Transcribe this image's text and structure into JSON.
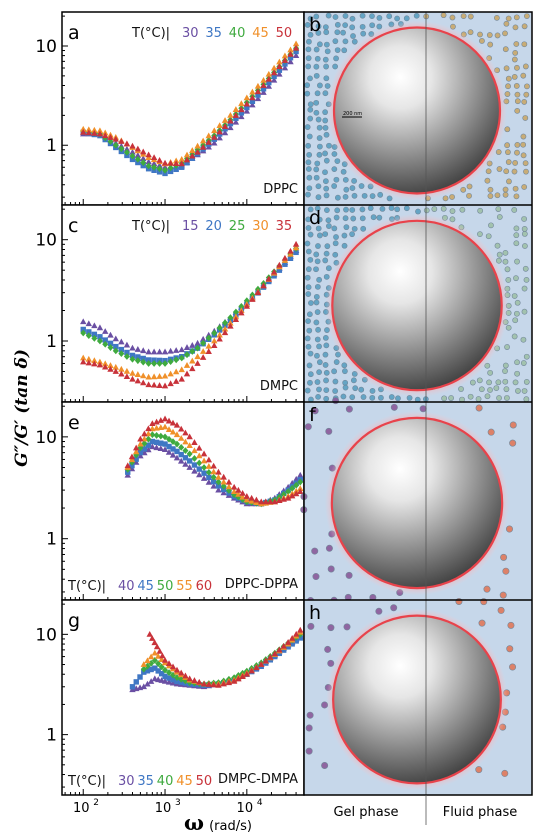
{
  "figure": {
    "ylabel": "G″/G′ (tan δ)",
    "xlabel_symbol": "ω",
    "xlabel_unit": "(rad/s)",
    "phase_labels": [
      "Gel phase",
      "Fluid phase"
    ],
    "x_ticks": [
      {
        "value": 100,
        "base": "10",
        "exp": "2"
      },
      {
        "value": 1000,
        "base": "10",
        "exp": "3"
      },
      {
        "value": 10000,
        "base": "10",
        "exp": "4"
      }
    ],
    "y_ticks": [
      {
        "value": 1,
        "label": "1"
      },
      {
        "value": 10,
        "label": "10"
      }
    ],
    "scale_bar_label": "200 nm"
  },
  "chart_data": [
    {
      "type": "scatter",
      "panel": "a",
      "sample": "DPPC",
      "legend_title": "T(°C)|",
      "legend_position": "top-right",
      "sample_label_position": "bottom-right",
      "x_scale": "log",
      "y_scale": "log",
      "xlim": [
        55,
        50000
      ],
      "ylim": [
        0.25,
        22
      ],
      "series": [
        {
          "name": "30",
          "color": "#6a4fa3",
          "x": [
            100,
            160,
            250,
            400,
            630,
            1000,
            1600,
            2500,
            4000,
            6300,
            10000,
            16000,
            25000,
            40000
          ],
          "y": [
            1.3,
            1.3,
            1.05,
            0.85,
            0.68,
            0.6,
            0.62,
            0.8,
            1.05,
            1.5,
            2.2,
            3.4,
            5.2,
            8.0
          ]
        },
        {
          "name": "35",
          "color": "#3f77c4",
          "x": [
            100,
            160,
            250,
            400,
            630,
            1000,
            1600,
            2500,
            4000,
            6300,
            10000,
            16000,
            25000,
            40000
          ],
          "y": [
            1.35,
            1.25,
            0.95,
            0.72,
            0.58,
            0.52,
            0.6,
            0.82,
            1.15,
            1.65,
            2.4,
            3.7,
            5.7,
            8.8
          ]
        },
        {
          "name": "40",
          "color": "#3faa3f",
          "x": [
            100,
            160,
            250,
            400,
            630,
            1000,
            1600,
            2500,
            4000,
            6300,
            10000,
            16000,
            25000,
            40000
          ],
          "y": [
            1.4,
            1.3,
            1.0,
            0.78,
            0.62,
            0.56,
            0.66,
            0.9,
            1.25,
            1.8,
            2.7,
            4.1,
            6.2,
            9.5
          ]
        },
        {
          "name": "45",
          "color": "#f0902a",
          "x": [
            100,
            160,
            250,
            400,
            630,
            1000,
            1600,
            2500,
            4000,
            6300,
            10000,
            16000,
            25000,
            40000
          ],
          "y": [
            1.45,
            1.4,
            1.2,
            0.95,
            0.75,
            0.65,
            0.72,
            0.98,
            1.4,
            2.0,
            3.0,
            4.5,
            6.9,
            10.5
          ]
        },
        {
          "name": "50",
          "color": "#c8323a",
          "x": [
            100,
            160,
            250,
            400,
            630,
            1000,
            1600,
            2500,
            4000,
            6300,
            10000,
            16000,
            25000,
            40000
          ],
          "y": [
            1.35,
            1.3,
            1.15,
            0.98,
            0.8,
            0.66,
            0.65,
            0.85,
            1.2,
            1.75,
            2.6,
            4.0,
            6.2,
            9.5
          ]
        }
      ]
    },
    {
      "type": "scatter",
      "panel": "c",
      "sample": "DMPC",
      "legend_title": "T(°C)|",
      "legend_position": "top-right",
      "sample_label_position": "bottom-right",
      "x_scale": "log",
      "y_scale": "log",
      "xlim": [
        55,
        50000
      ],
      "ylim": [
        0.25,
        22
      ],
      "series": [
        {
          "name": "15",
          "color": "#6a4fa3",
          "x": [
            100,
            160,
            250,
            400,
            630,
            1000,
            1600,
            2500,
            4000,
            6300,
            10000,
            16000,
            25000,
            40000
          ],
          "y": [
            1.55,
            1.35,
            1.05,
            0.85,
            0.78,
            0.78,
            0.82,
            0.95,
            1.25,
            1.7,
            2.4,
            3.5,
            5.2,
            7.8
          ]
        },
        {
          "name": "20",
          "color": "#3f77c4",
          "x": [
            100,
            160,
            250,
            400,
            630,
            1000,
            1600,
            2500,
            4000,
            6300,
            10000,
            16000,
            25000,
            40000
          ],
          "y": [
            1.3,
            1.1,
            0.88,
            0.72,
            0.65,
            0.64,
            0.7,
            0.85,
            1.15,
            1.6,
            2.3,
            3.4,
            5.0,
            7.5
          ]
        },
        {
          "name": "25",
          "color": "#3faa3f",
          "x": [
            100,
            160,
            250,
            400,
            630,
            1000,
            1600,
            2500,
            4000,
            6300,
            10000,
            16000,
            25000,
            40000
          ],
          "y": [
            1.2,
            1.0,
            0.8,
            0.66,
            0.6,
            0.6,
            0.68,
            0.85,
            1.2,
            1.7,
            2.5,
            3.7,
            5.5,
            8.2
          ]
        },
        {
          "name": "30",
          "color": "#f0902a",
          "x": [
            100,
            160,
            250,
            400,
            630,
            1000,
            1600,
            2500,
            4000,
            6300,
            10000,
            16000,
            25000,
            40000
          ],
          "y": [
            0.68,
            0.62,
            0.55,
            0.48,
            0.44,
            0.45,
            0.52,
            0.7,
            1.0,
            1.5,
            2.3,
            3.5,
            5.4,
            8.3
          ]
        },
        {
          "name": "35",
          "color": "#c8323a",
          "x": [
            100,
            160,
            250,
            400,
            630,
            1000,
            1600,
            2500,
            4000,
            6300,
            10000,
            16000,
            25000,
            40000
          ],
          "y": [
            0.62,
            0.58,
            0.5,
            0.42,
            0.37,
            0.36,
            0.42,
            0.6,
            0.9,
            1.4,
            2.2,
            3.5,
            5.6,
            9.0
          ]
        }
      ]
    },
    {
      "type": "scatter",
      "panel": "e",
      "sample": "DPPC-DPPA",
      "legend_title": "T(°C)|",
      "legend_position": "bottom-left",
      "sample_label_position": "bottom-right",
      "x_scale": "log",
      "y_scale": "log",
      "xlim": [
        55,
        50000
      ],
      "ylim": [
        0.25,
        22
      ],
      "series": [
        {
          "name": "40",
          "color": "#6a4fa3",
          "x": [
            350,
            500,
            700,
            1000,
            1400,
            2000,
            3000,
            4500,
            7000,
            10000,
            15000,
            22000,
            32000,
            45000
          ],
          "y": [
            4.2,
            6.5,
            8.0,
            7.5,
            6.2,
            5.0,
            3.9,
            3.0,
            2.5,
            2.2,
            2.2,
            2.5,
            3.2,
            4.2
          ]
        },
        {
          "name": "45",
          "color": "#3f77c4",
          "x": [
            350,
            500,
            700,
            1000,
            1400,
            2000,
            3000,
            4500,
            7000,
            10000,
            15000,
            22000,
            32000,
            45000
          ],
          "y": [
            4.5,
            7.0,
            9.0,
            8.5,
            7.2,
            5.8,
            4.4,
            3.3,
            2.6,
            2.3,
            2.2,
            2.4,
            3.0,
            3.8
          ]
        },
        {
          "name": "50",
          "color": "#3faa3f",
          "x": [
            350,
            500,
            700,
            1000,
            1400,
            2000,
            3000,
            4500,
            7000,
            10000,
            15000,
            22000,
            32000,
            45000
          ],
          "y": [
            4.8,
            7.8,
            10.5,
            10.0,
            8.5,
            6.8,
            5.0,
            3.6,
            2.7,
            2.3,
            2.2,
            2.4,
            2.9,
            3.6
          ]
        },
        {
          "name": "55",
          "color": "#f0902a",
          "x": [
            350,
            500,
            700,
            1000,
            1400,
            2000,
            3000,
            4500,
            7000,
            10000,
            15000,
            22000,
            32000,
            45000
          ],
          "y": [
            5.0,
            8.5,
            12.0,
            12.5,
            10.5,
            8.2,
            5.8,
            4.0,
            2.9,
            2.4,
            2.2,
            2.3,
            2.6,
            3.1
          ]
        },
        {
          "name": "60",
          "color": "#c8323a",
          "x": [
            350,
            500,
            700,
            1000,
            1400,
            2000,
            3000,
            4500,
            7000,
            10000,
            15000,
            22000,
            32000,
            45000
          ],
          "y": [
            5.2,
            9.5,
            13.5,
            15.0,
            13.0,
            10.0,
            6.8,
            4.5,
            3.2,
            2.6,
            2.3,
            2.3,
            2.5,
            2.9
          ]
        }
      ]
    },
    {
      "type": "scatter",
      "panel": "g",
      "sample": "DMPC-DMPA",
      "legend_title": "T(°C)|",
      "legend_position": "bottom-left",
      "sample_label_position": "bottom-right",
      "x_scale": "log",
      "y_scale": "log",
      "xlim": [
        55,
        50000
      ],
      "ylim": [
        0.25,
        22
      ],
      "series": [
        {
          "name": "30",
          "color": "#6a4fa3",
          "x": [
            400,
            550,
            750,
            1000,
            1400,
            2000,
            3000,
            4500,
            7000,
            10000,
            15000,
            22000,
            32000,
            45000
          ],
          "y": [
            2.8,
            3.0,
            3.6,
            3.4,
            3.2,
            3.1,
            3.0,
            3.2,
            3.6,
            4.2,
            5.0,
            6.2,
            7.8,
            9.5
          ]
        },
        {
          "name": "35",
          "color": "#3f77c4",
          "x": [
            400,
            550,
            750,
            1000,
            1400,
            2000,
            3000,
            4500,
            7000,
            10000,
            15000,
            22000,
            32000,
            45000
          ],
          "y": [
            3.0,
            4.2,
            4.6,
            3.8,
            3.4,
            3.2,
            3.1,
            3.2,
            3.5,
            4.0,
            4.8,
            6.0,
            7.5,
            9.2
          ]
        },
        {
          "name": "40",
          "color": "#3faa3f",
          "x": [
            550,
            750,
            1000,
            1400,
            2000,
            3000,
            4500,
            7000,
            10000,
            15000,
            22000,
            32000,
            45000
          ],
          "y": [
            4.5,
            5.5,
            4.4,
            3.7,
            3.3,
            3.2,
            3.3,
            3.7,
            4.3,
            5.2,
            6.5,
            8.2,
            10.0
          ]
        },
        {
          "name": "45",
          "color": "#f0902a",
          "x": [
            550,
            750,
            1000,
            1400,
            2000,
            3000,
            4500,
            7000,
            10000,
            15000,
            22000,
            32000,
            45000
          ],
          "y": [
            5.0,
            6.5,
            5.2,
            4.2,
            3.5,
            3.2,
            3.2,
            3.5,
            4.1,
            5.0,
            6.3,
            8.0,
            10.5
          ]
        },
        {
          "name": "50",
          "color": "#c8323a",
          "x": [
            650,
            800,
            1000,
            1400,
            2000,
            3000,
            4500,
            7000,
            10000,
            15000,
            22000,
            32000,
            45000
          ],
          "y": [
            10.0,
            7.5,
            5.5,
            4.4,
            3.6,
            3.2,
            3.1,
            3.4,
            4.0,
            5.0,
            6.4,
            8.3,
            11.0
          ]
        }
      ]
    }
  ],
  "schematics": [
    {
      "panel": "b",
      "left_particle_color": "#5a9fc0",
      "right_particle_color": "#c9a86a",
      "style": "dense"
    },
    {
      "panel": "d",
      "left_particle_color": "#5a9fc0",
      "right_particle_color": "#9fc0a8",
      "style": "dense"
    },
    {
      "panel": "f",
      "left_particle_color": "#8a5a9a",
      "right_particle_color": "#e0785a",
      "style": "sparse"
    },
    {
      "panel": "h",
      "left_particle_color": "#8a5a9a",
      "right_particle_color": "#e0785a",
      "style": "sparse"
    }
  ]
}
